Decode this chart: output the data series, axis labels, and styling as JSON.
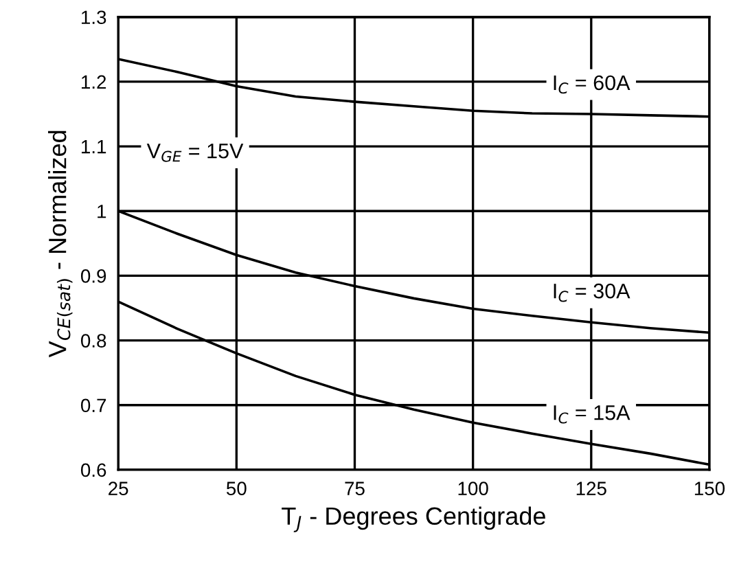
{
  "chart_data": {
    "type": "line",
    "xlabel": "T$_{J}$ - Degrees Centigrade",
    "ylabel": "V$_{CE(sat)}$ - Normalized",
    "x": [
      25,
      37.5,
      50,
      62.5,
      75,
      87.5,
      100,
      112.5,
      125,
      137.5,
      150
    ],
    "series": [
      {
        "name": "I$_{C}$ = 60A",
        "color": "#000000",
        "values": [
          1.235,
          1.215,
          1.193,
          1.177,
          1.169,
          1.162,
          1.155,
          1.151,
          1.15,
          1.148,
          1.146
        ]
      },
      {
        "name": "I$_{C}$ = 30A",
        "color": "#000000",
        "values": [
          1.0,
          0.965,
          0.932,
          0.905,
          0.884,
          0.865,
          0.849,
          0.838,
          0.828,
          0.819,
          0.812
        ]
      },
      {
        "name": "I$_{C}$ = 15A",
        "color": "#000000",
        "values": [
          0.86,
          0.818,
          0.78,
          0.745,
          0.716,
          0.693,
          0.673,
          0.656,
          0.64,
          0.625,
          0.608
        ]
      }
    ],
    "annotations": [
      "V$_{GE}$ = 15V"
    ],
    "xlim": [
      25,
      150
    ],
    "xticks": [
      25,
      50,
      75,
      100,
      125,
      150
    ],
    "ylim": [
      0.6,
      1.3
    ],
    "yticks": [
      0.6,
      0.7,
      0.8,
      0.9,
      1,
      1.1,
      1.2,
      1.3
    ],
    "grid": true,
    "marker": "none",
    "line_style": "solid",
    "legend": false
  }
}
